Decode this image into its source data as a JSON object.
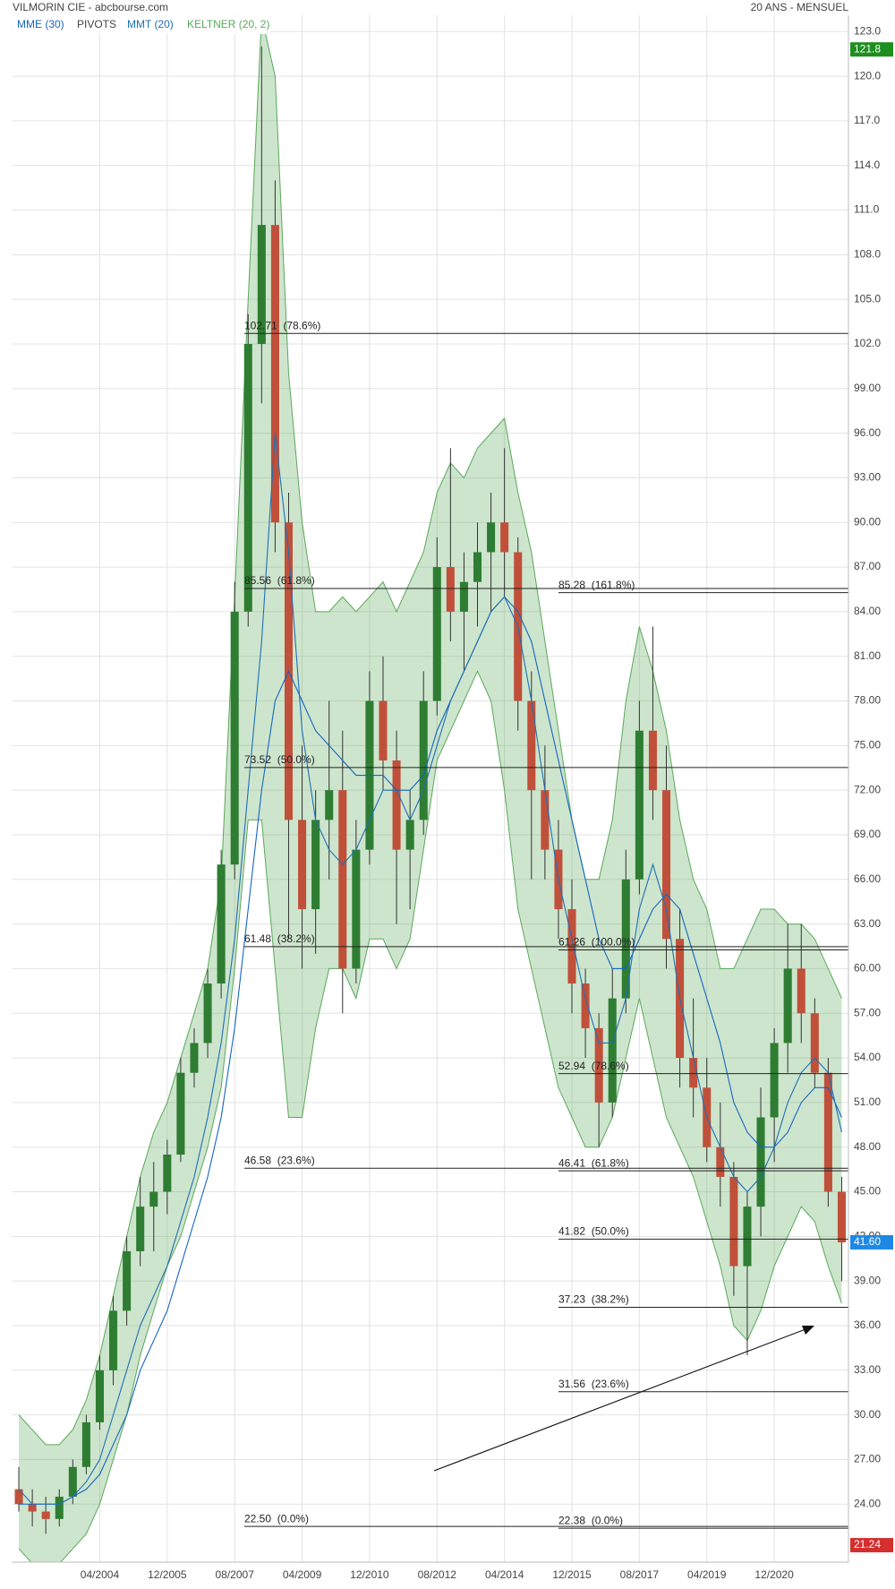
{
  "chart_data": {
    "type": "candlestick",
    "title": "VILMORIN CIE - abcbourse.com",
    "subtitle": "20 ANS - MENSUEL",
    "categories": [
      null,
      null,
      null,
      null,
      null,
      null,
      "04/2004",
      null,
      null,
      null,
      null,
      "12/2005",
      null,
      null,
      null,
      null,
      "08/2007",
      null,
      null,
      null,
      null,
      "04/2009",
      null,
      null,
      null,
      null,
      "12/2010",
      null,
      null,
      null,
      null,
      "08/2012",
      null,
      null,
      null,
      null,
      "04/2014",
      null,
      null,
      null,
      null,
      "12/2015",
      null,
      null,
      null,
      null,
      "08/2017",
      null,
      null,
      null,
      null,
      "04/2019",
      null,
      null,
      null,
      null,
      "12/2020",
      null,
      null,
      null,
      null,
      null
    ],
    "open": [
      25,
      24,
      23.5,
      23,
      24.5,
      26.5,
      29.5,
      33,
      37,
      41,
      44,
      45,
      47.5,
      53,
      55,
      59,
      67,
      84,
      102,
      110,
      90,
      70,
      64,
      70,
      72,
      60,
      68,
      78,
      74,
      68,
      70,
      78,
      87,
      84,
      86,
      88,
      90,
      88,
      78,
      72,
      68,
      64,
      59,
      56,
      51,
      58,
      66,
      76,
      72,
      62,
      54,
      52,
      48,
      46,
      40,
      44,
      50,
      55,
      60,
      57,
      53,
      45
    ],
    "high": [
      26.5,
      25,
      24.5,
      25,
      27,
      30,
      34,
      38,
      42,
      46,
      47,
      48.5,
      54,
      56,
      60,
      68,
      86,
      104,
      122,
      113,
      92,
      75,
      72,
      78,
      76,
      70,
      80,
      81,
      76,
      72,
      80,
      89,
      95,
      88,
      90,
      92,
      95,
      89,
      80,
      75,
      70,
      66,
      60,
      57,
      60,
      68,
      78,
      83,
      75,
      64,
      58,
      54,
      51,
      47,
      45,
      52,
      56,
      63,
      63,
      58,
      54,
      46
    ],
    "low": [
      23.5,
      22.5,
      22,
      22.5,
      24,
      26,
      29,
      32,
      36,
      40,
      41,
      43.5,
      47,
      52,
      54,
      58,
      66,
      83,
      98,
      88,
      62,
      60,
      61,
      66,
      57,
      59,
      67,
      72,
      63,
      64,
      69,
      77,
      82,
      80,
      83,
      84,
      85,
      76,
      66,
      66,
      62,
      57,
      54,
      48,
      50,
      57,
      65,
      70,
      60,
      52,
      50,
      47,
      44,
      38,
      34,
      42,
      47,
      53,
      55,
      52,
      44,
      39
    ],
    "close": [
      24,
      23.5,
      23,
      24.5,
      26.5,
      29.5,
      33,
      37,
      41,
      44,
      45,
      47.5,
      53,
      55,
      59,
      67,
      84,
      102,
      110,
      90,
      70,
      64,
      70,
      72,
      60,
      68,
      78,
      74,
      68,
      70,
      78,
      87,
      84,
      86,
      88,
      90,
      88,
      78,
      72,
      68,
      64,
      59,
      56,
      51,
      58,
      66,
      76,
      72,
      62,
      54,
      52,
      48,
      46,
      40,
      44,
      50,
      55,
      60,
      57,
      53,
      45,
      41.6
    ],
    "up_color": "#2e7d32",
    "down_color": "#c0503a",
    "series": [
      {
        "name": "MME (30)",
        "color": "#1565c0",
        "values": [
          24,
          24,
          24,
          24,
          24.5,
          25,
          26,
          28,
          30,
          33,
          35,
          37,
          40,
          43,
          46,
          50,
          56,
          64,
          72,
          78,
          80,
          78,
          76,
          75,
          74,
          73,
          73,
          73,
          72,
          72,
          73,
          76,
          78,
          80,
          82,
          84,
          85,
          84,
          82,
          78,
          74,
          70,
          66,
          62,
          60,
          60,
          62,
          64,
          65,
          64,
          61,
          58,
          55,
          51,
          49,
          48,
          48,
          49,
          51,
          52,
          52,
          50
        ]
      },
      {
        "name": "MMT (20)",
        "color": "#1e6fb5",
        "values": [
          25,
          24,
          24,
          24,
          24.5,
          25.5,
          27,
          30,
          33,
          36,
          38,
          40,
          43,
          46,
          50,
          55,
          62,
          72,
          82,
          96,
          88,
          76,
          70,
          68,
          67,
          68,
          70,
          72,
          72,
          70,
          72,
          75,
          78,
          80,
          82,
          84,
          85,
          83,
          78,
          72,
          66,
          62,
          58,
          55,
          55,
          58,
          64,
          67,
          64,
          58,
          54,
          50,
          48,
          46,
          45,
          46,
          48,
          51,
          53,
          54,
          53,
          49
        ]
      }
    ],
    "keltner": {
      "name": "KELTNER (20, 2)",
      "color": "#5aa85a",
      "upper": [
        30,
        29,
        28,
        28,
        29,
        31,
        34,
        38,
        42,
        46,
        49,
        51,
        54,
        57,
        60,
        66,
        85,
        105,
        124,
        120,
        100,
        90,
        84,
        84,
        85,
        84,
        85,
        86,
        84,
        86,
        88,
        92,
        94,
        93,
        95,
        96,
        97,
        92,
        88,
        82,
        76,
        70,
        66,
        66,
        70,
        78,
        83,
        80,
        76,
        70,
        66,
        64,
        60,
        60,
        62,
        64,
        64,
        63,
        63,
        62,
        60,
        58
      ],
      "lower": [
        21,
        20,
        20,
        20,
        21,
        22,
        24,
        27,
        30,
        34,
        37,
        40,
        42,
        45,
        48,
        52,
        60,
        70,
        70,
        60,
        50,
        50,
        56,
        60,
        60,
        58,
        62,
        62,
        60,
        62,
        68,
        74,
        76,
        78,
        80,
        78,
        72,
        64,
        60,
        56,
        52,
        50,
        48,
        48,
        50,
        54,
        58,
        54,
        50,
        48,
        46,
        43,
        40,
        36,
        35,
        37,
        40,
        42,
        44,
        43,
        40,
        37.5
      ]
    },
    "pivots": {
      "name": "PIVOTS",
      "left": [
        {
          "value": 102.71,
          "label": "102.71  (78.6%)"
        },
        {
          "value": 85.56,
          "label": "85.56  (61.8%)"
        },
        {
          "value": 73.52,
          "label": "73.52  (50.0%)"
        },
        {
          "value": 61.48,
          "label": "61.48  (38.2%)"
        },
        {
          "value": 46.58,
          "label": "46.58  (23.6%)"
        },
        {
          "value": 22.5,
          "label": "22.50  (0.0%)"
        }
      ],
      "right": [
        {
          "value": 85.28,
          "label": "85.28  (161.8%)"
        },
        {
          "value": 61.26,
          "label": "61.26  (100.0%)"
        },
        {
          "value": 52.94,
          "label": "52.94  (78.6%)"
        },
        {
          "value": 46.41,
          "label": "46.41  (61.8%)"
        },
        {
          "value": 41.82,
          "label": "41.82  (50.0%)"
        },
        {
          "value": 37.23,
          "label": "37.23  (38.2%)"
        },
        {
          "value": 31.56,
          "label": "31.56  (23.6%)"
        },
        {
          "value": 22.38,
          "label": "22.38  (0.0%)"
        }
      ]
    },
    "price_markers": [
      {
        "value": 121.8,
        "label": "121.8",
        "color": "#1e8e1e"
      },
      {
        "value": 41.6,
        "label": "41.60",
        "color": "#1e88e5"
      },
      {
        "value": 21.24,
        "label": "21.24",
        "color": "#d32f2f"
      }
    ],
    "ylim": [
      20.1,
      124.1
    ],
    "yticks": [
      {
        "value": 24,
        "label": "24.00"
      },
      {
        "value": 27,
        "label": "27.00"
      },
      {
        "value": 30,
        "label": "30.00"
      },
      {
        "value": 33,
        "label": "33.00"
      },
      {
        "value": 36,
        "label": "36.00"
      },
      {
        "value": 39,
        "label": "39.00"
      },
      {
        "value": 42,
        "label": "42.00"
      },
      {
        "value": 45,
        "label": "45.00"
      },
      {
        "value": 48,
        "label": "48.00"
      },
      {
        "value": 51,
        "label": "51.00"
      },
      {
        "value": 54,
        "label": "54.00"
      },
      {
        "value": 57,
        "label": "57.00"
      },
      {
        "value": 60,
        "label": "60.00"
      },
      {
        "value": 63,
        "label": "63.00"
      },
      {
        "value": 66,
        "label": "66.00"
      },
      {
        "value": 69,
        "label": "69.00"
      },
      {
        "value": 72,
        "label": "72.00"
      },
      {
        "value": 75,
        "label": "75.00"
      },
      {
        "value": 78,
        "label": "78.00"
      },
      {
        "value": 81,
        "label": "81.00"
      },
      {
        "value": 84,
        "label": "84.00"
      },
      {
        "value": 87,
        "label": "87.00"
      },
      {
        "value": 90,
        "label": "90.00"
      },
      {
        "value": 93,
        "label": "93.00"
      },
      {
        "value": 96,
        "label": "96.00"
      },
      {
        "value": 99,
        "label": "99.00"
      },
      {
        "value": 102,
        "label": "102.0"
      },
      {
        "value": 105,
        "label": "105.0"
      },
      {
        "value": 108,
        "label": "108.0"
      },
      {
        "value": 111,
        "label": "111.0"
      },
      {
        "value": 114,
        "label": "114.0"
      },
      {
        "value": 117,
        "label": "117.0"
      },
      {
        "value": 120,
        "label": "120.0"
      },
      {
        "value": 123,
        "label": "123.0"
      }
    ],
    "grid": true
  }
}
